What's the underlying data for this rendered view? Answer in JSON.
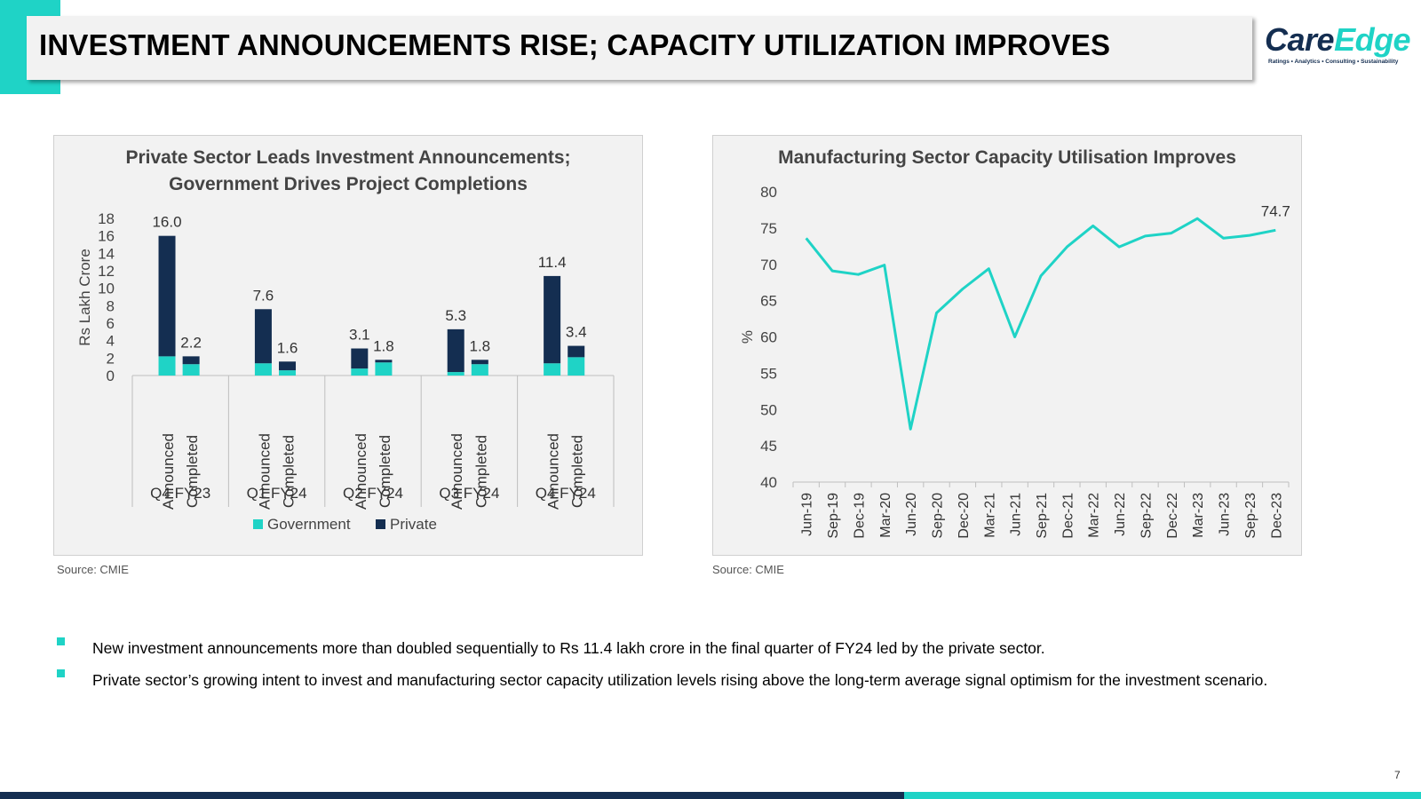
{
  "header": {
    "title": "INVESTMENT ANNOUNCEMENTS RISE; CAPACITY UTILIZATION IMPROVES",
    "logo_primary": "Care",
    "logo_secondary": "Edge",
    "logo_tagline": "Ratings • Analytics • Consulting • Sustainability"
  },
  "chart_data": [
    {
      "type": "bar",
      "stacked": true,
      "title_line1": "Private Sector Leads Investment Announcements;",
      "title_line2": "Government Drives Project Completions",
      "ylabel": "Rs Lakh Crore",
      "ylim": [
        0,
        18
      ],
      "yticks": [
        0,
        2,
        4,
        6,
        8,
        10,
        12,
        14,
        16,
        18
      ],
      "groups": [
        "Q4 FY23",
        "Q1 FY24",
        "Q2 FY24",
        "Q3 FY24",
        "Q4 FY24"
      ],
      "bar_labels": [
        "Announced",
        "Completed"
      ],
      "series": [
        {
          "name": "Government",
          "color": "#1fd3c6",
          "values": [
            [
              2.2,
              1.3
            ],
            [
              1.4,
              0.6
            ],
            [
              0.8,
              1.5
            ],
            [
              0.4,
              1.3
            ],
            [
              1.4,
              2.1
            ]
          ]
        },
        {
          "name": "Private",
          "color": "#142e51",
          "values": [
            [
              13.8,
              0.9
            ],
            [
              6.2,
              1.0
            ],
            [
              2.3,
              0.3
            ],
            [
              4.9,
              0.5
            ],
            [
              10.0,
              1.3
            ]
          ]
        }
      ],
      "totals": [
        [
          "16.0",
          "2.2"
        ],
        [
          "7.6",
          "1.6"
        ],
        [
          "3.1",
          "1.8"
        ],
        [
          "5.3",
          "1.8"
        ],
        [
          "11.4",
          "3.4"
        ]
      ],
      "legend": [
        "Government",
        "Private"
      ],
      "legend_position": "bottom",
      "source": "Source: CMIE"
    },
    {
      "type": "line",
      "title": "Manufacturing Sector Capacity Utilisation Improves",
      "ylabel": "%",
      "ylim": [
        40,
        80
      ],
      "yticks": [
        40,
        45,
        50,
        55,
        60,
        65,
        70,
        75,
        80
      ],
      "x": [
        "Jun-19",
        "Sep-19",
        "Dec-19",
        "Mar-20",
        "Jun-20",
        "Sep-20",
        "Dec-20",
        "Mar-21",
        "Jun-21",
        "Sep-21",
        "Dec-21",
        "Mar-22",
        "Jun-22",
        "Sep-22",
        "Dec-22",
        "Mar-23",
        "Jun-23",
        "Sep-23",
        "Dec-23"
      ],
      "series": [
        {
          "name": "Capacity Utilisation",
          "color": "#1fd3c6",
          "values": [
            73.6,
            69.1,
            68.6,
            69.9,
            47.3,
            63.3,
            66.6,
            69.4,
            60.0,
            68.4,
            72.4,
            75.3,
            72.4,
            73.9,
            74.3,
            76.3,
            73.6,
            74.0,
            74.7
          ]
        }
      ],
      "end_label": "74.7",
      "source": "Source: CMIE"
    }
  ],
  "bullets": [
    "New investment announcements more than doubled sequentially to Rs 11.4 lakh crore in the final quarter of FY24 led by the private sector.",
    "Private sector’s growing intent to invest and manufacturing sector capacity utilization levels rising above the long-term average signal optimism for the investment scenario."
  ],
  "page_number": "7",
  "colors": {
    "teal": "#1fd3c6",
    "navy": "#142e51",
    "panel_bg": "#f2f2f2"
  }
}
